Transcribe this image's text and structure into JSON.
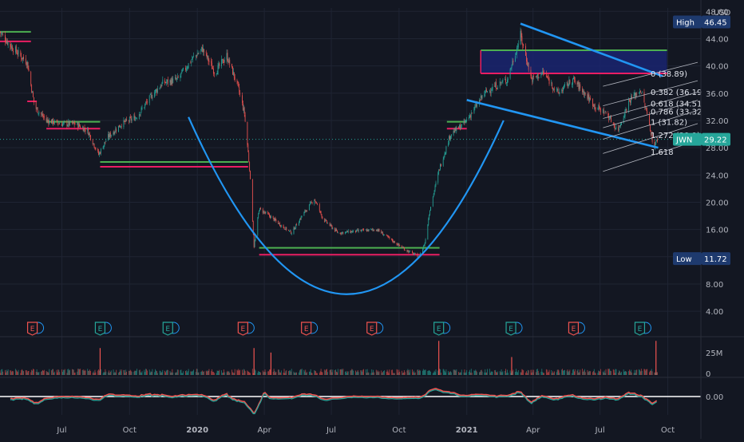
{
  "app": {
    "currency": "USD",
    "ticker": "JWN",
    "last_price": "29.22",
    "high_label": "High",
    "high_value": "46.45",
    "low_label": "Low",
    "low_value": "11.72"
  },
  "colors": {
    "background": "#131722",
    "grid": "#1f2433",
    "text": "#b2b5be",
    "up": "#26a69a",
    "down": "#ef5350",
    "drawing": "#2196f3",
    "green_line": "#4caf50",
    "magenta_line": "#e91e63",
    "fib_line": "#b2b5be",
    "box_fill": "#1a2470"
  },
  "chart_data": {
    "type": "candlestick",
    "symbol": "JWN",
    "y_axis": {
      "ticks": [
        "4.00",
        "8.00",
        "12.00",
        "16.00",
        "20.00",
        "24.00",
        "28.00",
        "32.00",
        "36.00",
        "40.00",
        "44.00",
        "48.00"
      ],
      "range": [
        0.5,
        48.5
      ]
    },
    "x_axis": {
      "ticks": [
        "Jul",
        "Oct",
        "2020",
        "Apr",
        "Jul",
        "Oct",
        "2021",
        "Apr",
        "Jul",
        "Oct"
      ],
      "range": [
        "2019-04-08",
        "2021-11-15"
      ]
    },
    "price_path": [
      [
        "2019-04-08",
        45.0
      ],
      [
        "2019-04-22",
        43.0
      ],
      [
        "2019-05-15",
        40.5
      ],
      [
        "2019-05-25",
        34.0
      ],
      [
        "2019-06-10",
        32.0
      ],
      [
        "2019-07-01",
        31.5
      ],
      [
        "2019-07-20",
        31.5
      ],
      [
        "2019-08-05",
        30.5
      ],
      [
        "2019-08-20",
        27.0
      ],
      [
        "2019-09-01",
        29.5
      ],
      [
        "2019-09-20",
        31.5
      ],
      [
        "2019-10-10",
        32.5
      ],
      [
        "2019-10-30",
        35.5
      ],
      [
        "2019-11-15",
        37.5
      ],
      [
        "2019-12-05",
        38.0
      ],
      [
        "2019-12-25",
        41.0
      ],
      [
        "2020-01-08",
        42.5
      ],
      [
        "2020-01-25",
        39.0
      ],
      [
        "2020-02-10",
        41.5
      ],
      [
        "2020-02-25",
        37.0
      ],
      [
        "2020-03-05",
        33.0
      ],
      [
        "2020-03-12",
        25.0
      ],
      [
        "2020-03-18",
        13.5
      ],
      [
        "2020-03-25",
        19.0
      ],
      [
        "2020-04-08",
        18.0
      ],
      [
        "2020-04-25",
        16.5
      ],
      [
        "2020-05-08",
        15.5
      ],
      [
        "2020-05-22",
        18.0
      ],
      [
        "2020-06-08",
        20.5
      ],
      [
        "2020-06-20",
        17.5
      ],
      [
        "2020-07-10",
        15.5
      ],
      [
        "2020-08-10",
        15.8
      ],
      [
        "2020-09-01",
        16.0
      ],
      [
        "2020-09-20",
        14.5
      ],
      [
        "2020-10-10",
        13.0
      ],
      [
        "2020-10-28",
        12.0
      ],
      [
        "2020-11-05",
        14.0
      ],
      [
        "2020-11-12",
        19.0
      ],
      [
        "2020-11-25",
        25.0
      ],
      [
        "2020-12-10",
        30.0
      ],
      [
        "2020-12-28",
        31.5
      ],
      [
        "2021-01-10",
        33.5
      ],
      [
        "2021-01-25",
        36.0
      ],
      [
        "2021-02-08",
        37.0
      ],
      [
        "2021-02-25",
        38.0
      ],
      [
        "2021-03-15",
        44.5
      ],
      [
        "2021-03-30",
        38.0
      ],
      [
        "2021-04-15",
        39.0
      ],
      [
        "2021-05-05",
        36.0
      ],
      [
        "2021-05-25",
        38.0
      ],
      [
        "2021-06-10",
        36.0
      ],
      [
        "2021-06-25",
        34.0
      ],
      [
        "2021-07-10",
        33.0
      ],
      [
        "2021-07-25",
        30.5
      ],
      [
        "2021-08-10",
        35.0
      ],
      [
        "2021-08-25",
        36.5
      ],
      [
        "2021-09-05",
        32.0
      ],
      [
        "2021-09-12",
        28.0
      ],
      [
        "2021-09-17",
        29.2
      ]
    ],
    "labels": {
      "high": "High 46.45",
      "low": "Low 11.72",
      "last": "JWN 29.22"
    },
    "fibonacci": [
      {
        "ratio": "0",
        "price": 38.89,
        "label": "0 (38.89)"
      },
      {
        "ratio": "0.382",
        "price": 36.19,
        "label": "0.382 (36.19"
      },
      {
        "ratio": "0.618",
        "price": 34.51,
        "label": "0.618 (34.51"
      },
      {
        "ratio": "0.786",
        "price": 33.32,
        "label": "0.786 (33.32"
      },
      {
        "ratio": "1",
        "price": 31.82,
        "label": "1 (31.82)"
      },
      {
        "ratio": "1.272",
        "price": 29.9,
        "label": "1.272 (29.9)"
      },
      {
        "ratio": "1.618",
        "price": 27.44,
        "label": "1.618"
      }
    ],
    "earnings_markers": [
      {
        "date": "2019-05-22",
        "kind": "down"
      },
      {
        "date": "2019-08-22",
        "kind": "up"
      },
      {
        "date": "2019-11-22",
        "kind": "up"
      },
      {
        "date": "2020-03-03",
        "kind": "down"
      },
      {
        "date": "2020-05-28",
        "kind": "down"
      },
      {
        "date": "2020-08-25",
        "kind": "down"
      },
      {
        "date": "2020-11-24",
        "kind": "up"
      },
      {
        "date": "2021-03-02",
        "kind": "up"
      },
      {
        "date": "2021-05-26",
        "kind": "down"
      },
      {
        "date": "2021-08-24",
        "kind": "up"
      }
    ],
    "volume": {
      "ticks": [
        "25M",
        "0"
      ],
      "spikes": [
        {
          "date": "2019-08-22",
          "value": 30
        },
        {
          "date": "2020-03-18",
          "value": 30
        },
        {
          "date": "2020-04-10",
          "value": 25
        },
        {
          "date": "2020-11-24",
          "value": 38
        },
        {
          "date": "2021-03-03",
          "value": 20
        },
        {
          "date": "2021-09-15",
          "value": 38
        }
      ]
    },
    "oscillator": {
      "ticks": [
        "0.00"
      ],
      "zero_line": 0
    }
  }
}
